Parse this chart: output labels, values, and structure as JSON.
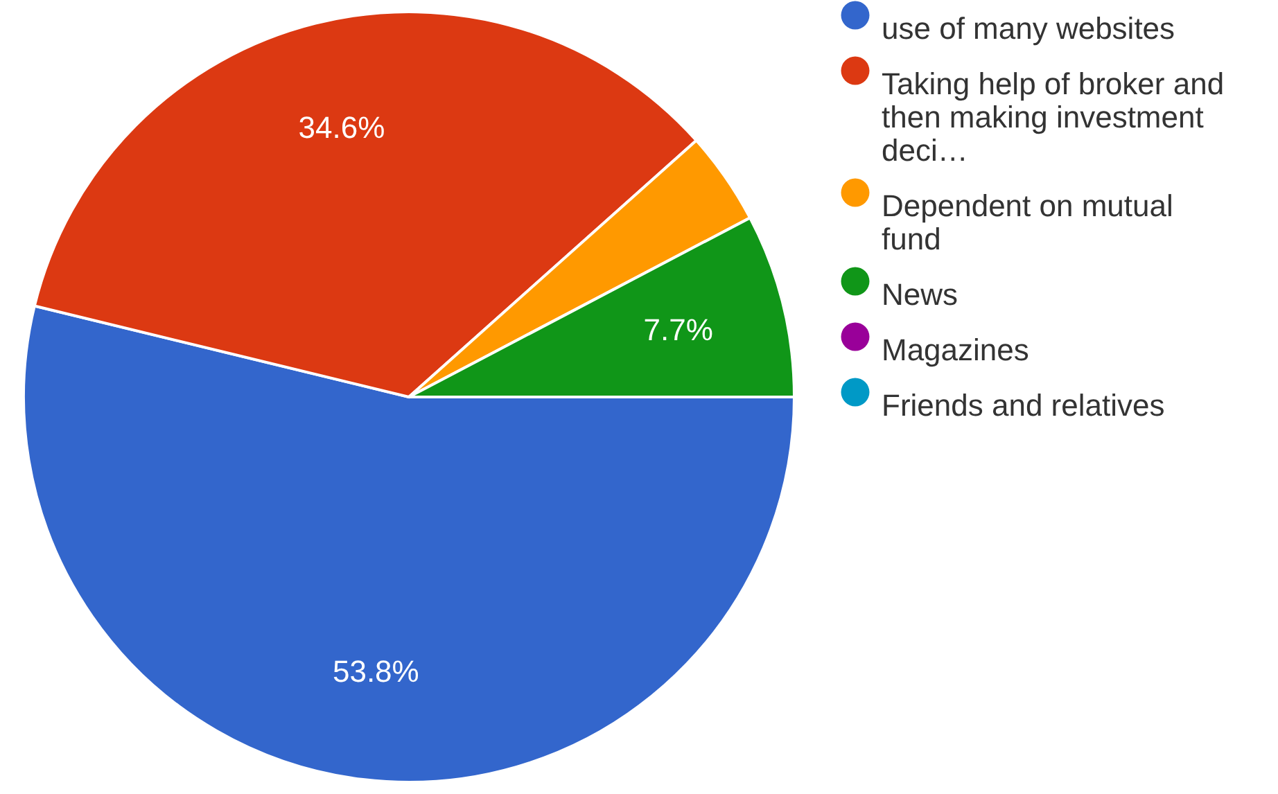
{
  "chart_data": {
    "type": "pie",
    "categories": [
      "use of many websites",
      "Taking help of broker and then making investment deci…",
      "Dependent on mutual fund",
      "News",
      "Magazines",
      "Friends and relatives"
    ],
    "values": [
      53.8,
      34.6,
      3.9,
      7.7,
      0,
      0
    ],
    "colors": [
      "#3366cc",
      "#dc3912",
      "#ff9900",
      "#109618",
      "#990099",
      "#0099c6"
    ],
    "value_labels": [
      "53.8%",
      "34.6%",
      null,
      "7.7%",
      null,
      null
    ],
    "legend": "right"
  }
}
